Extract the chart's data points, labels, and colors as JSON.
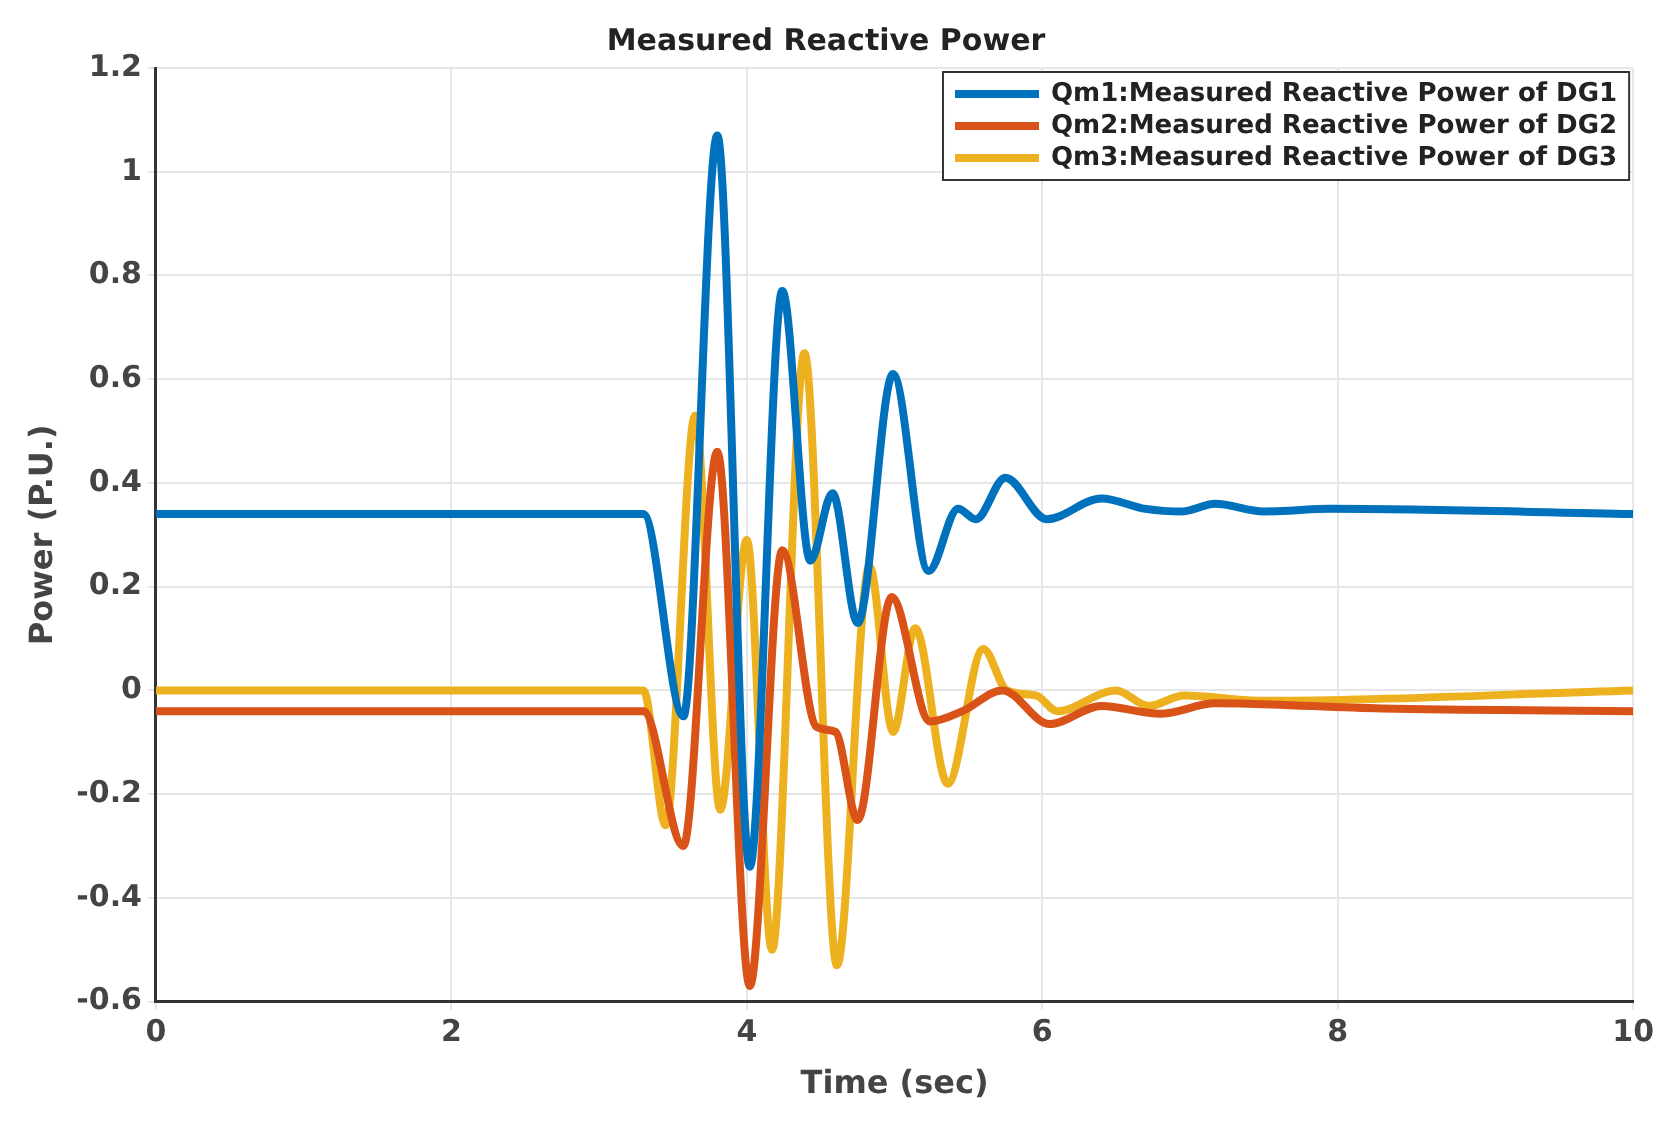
{
  "chart_data": {
    "type": "line",
    "title": "Measured Reactive Power",
    "xlabel": "Time (sec)",
    "ylabel": "Power (P.U.)",
    "xlim": [
      0,
      10
    ],
    "xticks": [
      0,
      2,
      4,
      6,
      8,
      10
    ],
    "ylim": [
      -0.6,
      1.2
    ],
    "yticks": [
      -0.6,
      -0.4,
      -0.2,
      0,
      0.2,
      0.4,
      0.6,
      0.8,
      1,
      1.2
    ],
    "grid": true,
    "legend": "top right",
    "marker": "none",
    "line_style": "solid",
    "series": [
      {
        "name": "Qm1:Measured Reactive Power of DG1",
        "color": "#0072bd",
        "x": [
          0,
          3.3,
          3.57,
          3.8,
          4.02,
          4.24,
          4.43,
          4.58,
          4.75,
          4.99,
          5.23,
          5.43,
          5.55,
          5.75,
          6.03,
          6.4,
          6.7,
          6.95,
          7.17,
          7.5,
          7.95,
          10
        ],
        "values": [
          0.34,
          0.34,
          -0.05,
          1.07,
          -0.34,
          0.77,
          0.25,
          0.38,
          0.13,
          0.61,
          0.23,
          0.35,
          0.33,
          0.41,
          0.33,
          0.37,
          0.35,
          0.345,
          0.36,
          0.345,
          0.35,
          0.34
        ]
      },
      {
        "name": "Qm2:Measured Reactive Power of DG2",
        "color": "#d95319",
        "x": [
          0,
          3.3,
          3.57,
          3.8,
          4.02,
          4.24,
          4.47,
          4.6,
          4.75,
          4.98,
          5.24,
          5.46,
          5.73,
          6.05,
          6.4,
          6.8,
          7.17,
          8.3,
          10
        ],
        "values": [
          -0.04,
          -0.04,
          -0.3,
          0.46,
          -0.57,
          0.27,
          -0.07,
          -0.08,
          -0.25,
          0.18,
          -0.06,
          -0.04,
          0,
          -0.065,
          -0.03,
          -0.045,
          -0.025,
          -0.035,
          -0.04
        ]
      },
      {
        "name": "Qm3:Measured Reactive Power of DG3",
        "color": "#edb120",
        "x": [
          0,
          3.3,
          3.45,
          3.65,
          3.82,
          4.0,
          4.17,
          4.39,
          4.61,
          4.83,
          4.99,
          5.14,
          5.36,
          5.6,
          5.76,
          5.96,
          6.1,
          6.5,
          6.72,
          6.96,
          7.5,
          10
        ],
        "values": [
          0,
          0,
          -0.26,
          0.53,
          -0.23,
          0.29,
          -0.5,
          0.65,
          -0.53,
          0.24,
          -0.08,
          0.12,
          -0.18,
          0.08,
          0,
          -0.01,
          -0.04,
          0,
          -0.03,
          -0.01,
          -0.02,
          0
        ]
      }
    ]
  }
}
